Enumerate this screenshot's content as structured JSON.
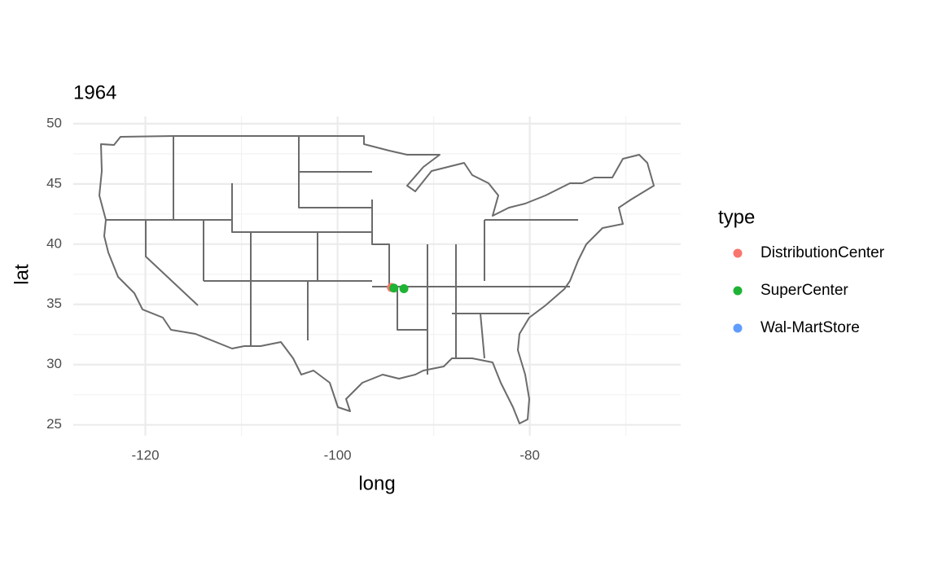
{
  "chart_data": {
    "type": "scatter",
    "title": "1964",
    "xlabel": "long",
    "ylabel": "lat",
    "legend_title": "type",
    "legend": "right",
    "grid": true,
    "xlim": [
      -127.5,
      -64.3
    ],
    "ylim": [
      24.1,
      50.6
    ],
    "xticks": [
      -120,
      -100,
      -80
    ],
    "yticks": [
      25,
      30,
      35,
      40,
      45,
      50
    ],
    "xminor": [
      -110,
      -90,
      -70
    ],
    "yminor": [
      27.5,
      32.5,
      37.5,
      42.5,
      47.5
    ],
    "series": [
      {
        "name": "DistributionCenter",
        "color": "#f8766d",
        "x": [
          -94.4
        ],
        "y": [
          36.4
        ]
      },
      {
        "name": "SuperCenter",
        "color": "#1fb335",
        "x": [
          -94.15,
          -93.1
        ],
        "y": [
          36.35,
          36.3
        ]
      },
      {
        "name": "Wal-MartStore",
        "color": "#619cff",
        "x": [],
        "y": []
      }
    ]
  }
}
